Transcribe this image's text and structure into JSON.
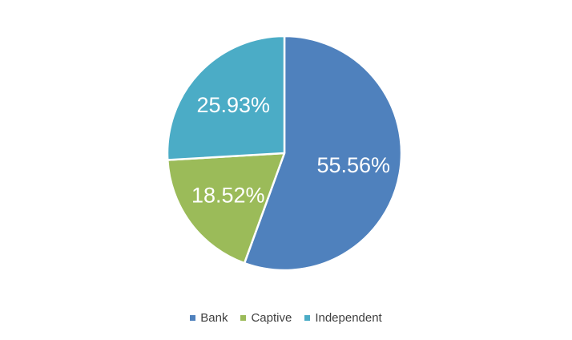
{
  "chart_data": {
    "type": "pie",
    "categories": [
      "Bank",
      "Captive",
      "Independent"
    ],
    "values": [
      55.56,
      18.52,
      25.93
    ],
    "labels": [
      "55.56%",
      "18.52%",
      "25.93%"
    ],
    "colors": [
      "#4F81BD",
      "#9BBB59",
      "#4BACC6"
    ],
    "title": "",
    "legend": "bottom",
    "start": "12 o'clock",
    "direction": "clockwise"
  }
}
